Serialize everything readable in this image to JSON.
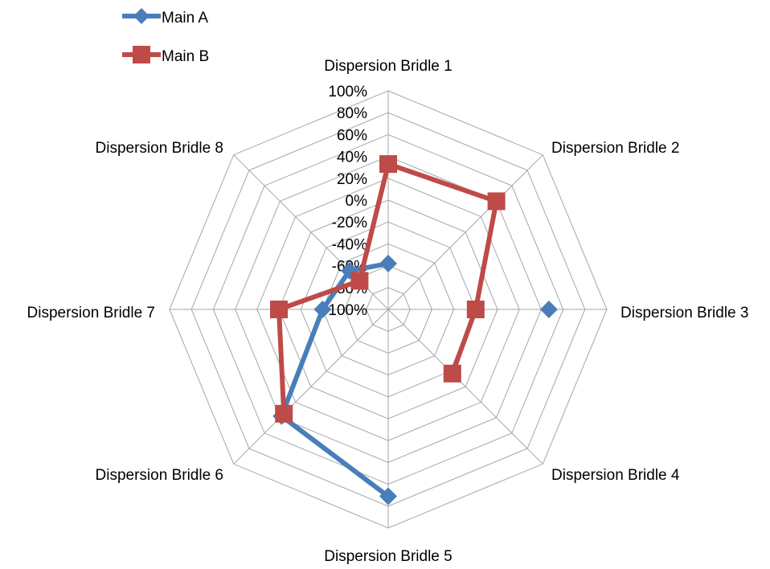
{
  "chart_data": {
    "type": "radar",
    "categories": [
      "Dispersion Bridle 1",
      "Dispersion Bridle 2",
      "Dispersion Bridle 3",
      "Dispersion Bridle 4",
      "Dispersion Bridle 5",
      "Dispersion Bridle 6",
      "Dispersion Bridle 7",
      "Dispersion Bridle 8"
    ],
    "radial_ticks": [
      "-100%",
      "-80%",
      "-60%",
      "-40%",
      "-20%",
      "0%",
      "20%",
      "40%",
      "60%",
      "80%",
      "100%"
    ],
    "rlim": [
      -100,
      100
    ],
    "grid": true,
    "legend_position": "top-left",
    "series": [
      {
        "name": "Main A",
        "color": "#4a7ebb",
        "marker": "diamond",
        "values": [
          -58,
          null,
          47,
          null,
          71,
          38,
          -40,
          -50
        ],
        "connect": [
          [
            0,
            null
          ],
          [
            4,
            5
          ],
          [
            5,
            6
          ],
          [
            6,
            7
          ],
          [
            7,
            0
          ]
        ]
      },
      {
        "name": "Main B",
        "color": "#be4b48",
        "marker": "square",
        "values": [
          33,
          40,
          -20,
          -17,
          null,
          35,
          0,
          -63
        ]
      }
    ]
  }
}
